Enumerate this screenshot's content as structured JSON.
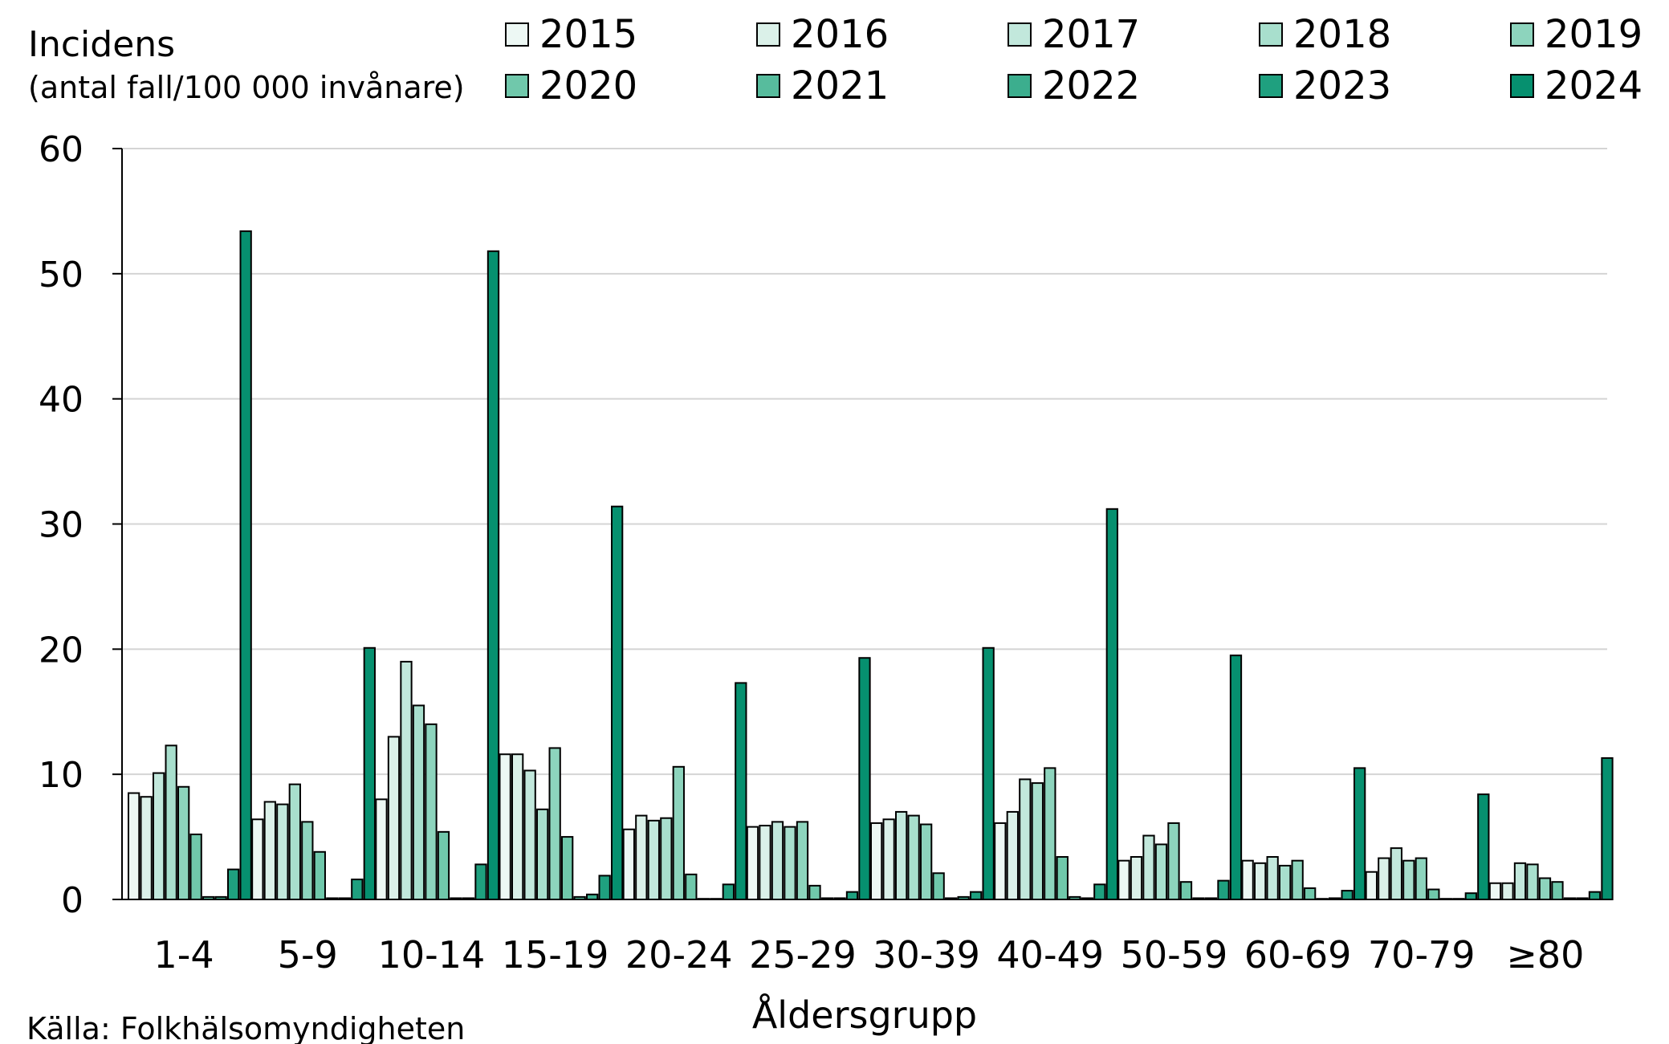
{
  "chart_data": {
    "type": "bar",
    "ylabel_line1": "Incidens",
    "ylabel_line2": "(antal fall/100 000 invånare)",
    "xlabel": "Åldersgrupp",
    "source": "Källa: Folkhälsomyndigheten",
    "ylim": [
      0,
      60
    ],
    "yticks": [
      "0",
      "10",
      "20",
      "30",
      "40",
      "50",
      "60"
    ],
    "grid": true,
    "legend_position": "top",
    "categories": [
      "1-4",
      "5-9",
      "10-14",
      "15-19",
      "20-24",
      "25-29",
      "30-39",
      "40-49",
      "50-59",
      "60-69",
      "70-79",
      "≥80"
    ],
    "series": [
      {
        "name": "2015",
        "color": "#edf8f4",
        "values": [
          8.5,
          6.4,
          8.0,
          11.6,
          5.6,
          5.8,
          6.1,
          6.1,
          3.1,
          3.1,
          2.2,
          1.3
        ]
      },
      {
        "name": "2016",
        "color": "#dbf1e9",
        "values": [
          8.2,
          7.8,
          13.0,
          11.6,
          6.7,
          5.9,
          6.4,
          7.0,
          3.4,
          2.9,
          3.3,
          1.3
        ]
      },
      {
        "name": "2017",
        "color": "#c2e8dc",
        "values": [
          10.1,
          7.6,
          19.0,
          10.3,
          6.3,
          6.2,
          7.0,
          9.6,
          5.1,
          3.4,
          4.1,
          2.9
        ]
      },
      {
        "name": "2018",
        "color": "#a8dfcd",
        "values": [
          12.3,
          9.2,
          15.5,
          7.2,
          6.5,
          5.8,
          6.7,
          9.3,
          4.4,
          2.7,
          3.1,
          2.8
        ]
      },
      {
        "name": "2019",
        "color": "#8dd4bd",
        "values": [
          9.0,
          6.2,
          14.0,
          12.1,
          10.6,
          6.2,
          6.0,
          10.5,
          6.1,
          3.1,
          3.3,
          1.7
        ]
      },
      {
        "name": "2020",
        "color": "#70c8ab",
        "values": [
          5.2,
          3.8,
          5.4,
          5.0,
          2.0,
          1.1,
          2.1,
          3.4,
          1.4,
          0.9,
          0.8,
          1.4
        ]
      },
      {
        "name": "2021",
        "color": "#57bc9d",
        "values": [
          0.2,
          0.1,
          0.1,
          0.2,
          0.0,
          0.1,
          0.1,
          0.2,
          0.1,
          0.0,
          0.0,
          0.1
        ]
      },
      {
        "name": "2022",
        "color": "#3cae8e",
        "values": [
          0.2,
          0.1,
          0.1,
          0.4,
          0.0,
          0.1,
          0.2,
          0.1,
          0.1,
          0.1,
          0.0,
          0.1
        ]
      },
      {
        "name": "2023",
        "color": "#1fa07f",
        "values": [
          2.4,
          1.6,
          2.8,
          1.9,
          1.2,
          0.6,
          0.6,
          1.2,
          1.5,
          0.7,
          0.5,
          0.6
        ]
      },
      {
        "name": "2024",
        "color": "#06906f",
        "values": [
          53.4,
          20.1,
          51.8,
          31.4,
          17.3,
          19.3,
          20.1,
          31.2,
          19.5,
          10.5,
          8.4,
          11.3
        ]
      }
    ]
  }
}
